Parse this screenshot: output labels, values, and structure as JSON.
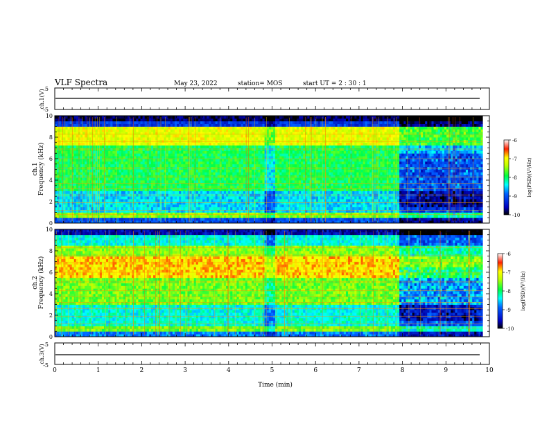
{
  "header": {
    "title": "VLF Spectra",
    "date": "May 23, 2022",
    "station": "station= MOS",
    "start": "start  UT =   2  : 30 : 1"
  },
  "chart_data": [
    {
      "type": "line",
      "panel": "ch1-waveform",
      "ylabel": "ch.1(V)",
      "xlim": [
        0,
        10
      ],
      "ylim": [
        -5,
        5
      ],
      "yticks": [
        "5",
        "-5"
      ],
      "series": [
        {
          "x": [
            0,
            10
          ],
          "values": [
            0,
            0
          ]
        }
      ]
    },
    {
      "type": "heatmap",
      "panel": "ch1-spectrogram",
      "ylabel_top": "ch.1",
      "ylabel": "Frequency (kHz)",
      "xlim": [
        0,
        10
      ],
      "ylim": [
        0,
        10
      ],
      "yticks": [
        "0",
        "2",
        "4",
        "6",
        "8",
        "10"
      ],
      "data_end_min": 9.85,
      "colorbar": {
        "label": "log(PSD)(V²/Hz)",
        "range": [
          -10,
          -6
        ],
        "ticks": [
          "-6",
          "-7",
          "-8",
          "-9",
          "-10"
        ]
      }
    },
    {
      "type": "heatmap",
      "panel": "ch2-spectrogram",
      "ylabel_top": "ch.2",
      "ylabel": "Frequency (kHz)",
      "xlim": [
        0,
        10
      ],
      "ylim": [
        0,
        10
      ],
      "yticks": [
        "0",
        "2",
        "4",
        "6",
        "8",
        "10"
      ],
      "data_end_min": 9.85,
      "colorbar": {
        "label": "log(PSD)(V²/Hz)",
        "range": [
          -10,
          -6
        ],
        "ticks": [
          "-6",
          "-7",
          "-8",
          "-9",
          "-10"
        ]
      }
    },
    {
      "type": "line",
      "panel": "ch3-waveform",
      "ylabel": "ch.3(V)",
      "xlabel": "Time (min)",
      "xlim": [
        0,
        10
      ],
      "ylim": [
        -5,
        5
      ],
      "yticks": [
        "5",
        "-5"
      ],
      "xticks": [
        "0",
        "1",
        "2",
        "3",
        "4",
        "5",
        "6",
        "7",
        "8",
        "9",
        "10"
      ],
      "series": [
        {
          "x": [
            0,
            10
          ],
          "values": [
            0,
            0
          ]
        }
      ]
    }
  ],
  "colors": {
    "colormap": [
      "#000080",
      "#0000ff",
      "#00ffff",
      "#00ff00",
      "#ffff00",
      "#ff0000",
      "#ffffff"
    ]
  }
}
